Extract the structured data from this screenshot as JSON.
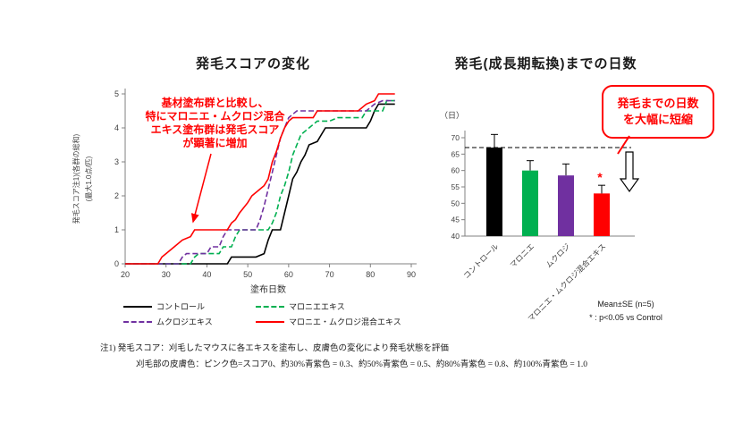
{
  "chart_data": [
    {
      "type": "line",
      "title": "発毛スコアの変化",
      "xlabel": "塗布日数",
      "ylabel": "発毛スコア注1)(各群の総和)",
      "ylabel2": "(最大1.0点/匹)",
      "xlim": [
        20,
        90
      ],
      "ylim": [
        0,
        5
      ],
      "xticks": [
        20,
        30,
        40,
        50,
        60,
        70,
        80,
        90
      ],
      "yticks": [
        0,
        1,
        2,
        3,
        4,
        5
      ],
      "grid": false,
      "legend_position": "bottom",
      "series": [
        {
          "name": "コントロール",
          "color": "#000000",
          "dash": "solid",
          "points": [
            [
              20,
              0
            ],
            [
              45,
              0
            ],
            [
              46,
              0.2
            ],
            [
              52,
              0.2
            ],
            [
              54,
              0.3
            ],
            [
              55,
              0.7
            ],
            [
              56,
              1
            ],
            [
              58,
              1
            ],
            [
              59,
              1.5
            ],
            [
              60,
              2
            ],
            [
              61,
              2.5
            ],
            [
              62,
              2.7
            ],
            [
              63,
              3
            ],
            [
              64,
              3.2
            ],
            [
              65,
              3.5
            ],
            [
              67,
              3.6
            ],
            [
              68,
              3.8
            ],
            [
              69,
              4
            ],
            [
              79,
              4
            ],
            [
              80,
              4.2
            ],
            [
              81,
              4.5
            ],
            [
              82,
              4.7
            ],
            [
              86,
              4.7
            ]
          ]
        },
        {
          "name": "マロニエエキス",
          "color": "#00B050",
          "dash": "dashed",
          "points": [
            [
              20,
              0
            ],
            [
              36,
              0
            ],
            [
              37,
              0.2
            ],
            [
              38,
              0.3
            ],
            [
              43,
              0.3
            ],
            [
              44,
              0.5
            ],
            [
              46,
              0.5
            ],
            [
              47,
              0.8
            ],
            [
              48,
              1
            ],
            [
              55,
              1
            ],
            [
              56,
              1.2
            ],
            [
              57,
              1.5
            ],
            [
              58,
              2
            ],
            [
              59,
              2.3
            ],
            [
              60,
              2.7
            ],
            [
              61,
              3.2
            ],
            [
              62,
              3.5
            ],
            [
              63,
              3.8
            ],
            [
              65,
              4
            ],
            [
              67,
              4.2
            ],
            [
              70,
              4.2
            ],
            [
              72,
              4.3
            ],
            [
              78,
              4.3
            ],
            [
              79,
              4.5
            ],
            [
              83,
              4.5
            ],
            [
              84,
              4.8
            ],
            [
              86,
              4.8
            ]
          ]
        },
        {
          "name": "ムクロジエキス",
          "color": "#7030A0",
          "dash": "dashed",
          "points": [
            [
              20,
              0
            ],
            [
              33,
              0
            ],
            [
              34,
              0.2
            ],
            [
              35,
              0.3
            ],
            [
              40,
              0.3
            ],
            [
              41,
              0.5
            ],
            [
              43,
              0.5
            ],
            [
              44,
              0.8
            ],
            [
              45,
              1
            ],
            [
              52,
              1
            ],
            [
              53,
              1.3
            ],
            [
              54,
              1.7
            ],
            [
              55,
              2.2
            ],
            [
              56,
              2.7
            ],
            [
              57,
              3.2
            ],
            [
              58,
              3.7
            ],
            [
              59,
              4
            ],
            [
              60,
              4.3
            ],
            [
              62,
              4.5
            ],
            [
              79,
              4.5
            ],
            [
              81,
              4.7
            ],
            [
              83,
              4.8
            ],
            [
              86,
              4.8
            ]
          ]
        },
        {
          "name": "マロニエ・ムクロジ混合エキス",
          "color": "#FF0000",
          "dash": "solid",
          "points": [
            [
              20,
              0
            ],
            [
              28,
              0
            ],
            [
              29,
              0.2
            ],
            [
              30,
              0.3
            ],
            [
              32,
              0.5
            ],
            [
              34,
              0.7
            ],
            [
              36,
              0.8
            ],
            [
              37,
              1
            ],
            [
              45,
              1
            ],
            [
              46,
              1.2
            ],
            [
              47,
              1.3
            ],
            [
              48,
              1.5
            ],
            [
              50,
              1.8
            ],
            [
              51,
              2
            ],
            [
              53,
              2.2
            ],
            [
              54,
              2.3
            ],
            [
              55,
              2.5
            ],
            [
              56,
              3
            ],
            [
              57,
              3.3
            ],
            [
              58,
              3.7
            ],
            [
              59,
              4
            ],
            [
              60,
              4.2
            ],
            [
              61,
              4.3
            ],
            [
              66,
              4.3
            ],
            [
              67,
              4.5
            ],
            [
              77,
              4.5
            ],
            [
              79,
              4.7
            ],
            [
              81,
              4.8
            ],
            [
              82,
              5
            ],
            [
              86,
              5
            ]
          ]
        }
      ]
    },
    {
      "type": "bar",
      "title": "発毛(成長期転換)までの日数",
      "unit": "（日）",
      "categories": [
        "コントロール",
        "マロニエ",
        "ムクロジ",
        "マロニエ・ムクロジ混合エキス"
      ],
      "values": [
        67,
        60,
        58.5,
        53
      ],
      "errors": [
        4,
        3,
        3.5,
        2.5
      ],
      "colors": [
        "#000000",
        "#00B050",
        "#7030A0",
        "#FF0000"
      ],
      "ylim": [
        40,
        70
      ],
      "yticks": [
        40,
        45,
        50,
        55,
        60,
        65,
        70
      ],
      "reference_line": {
        "value": 67,
        "style": "dashed",
        "color": "#000000"
      },
      "significance_marker": {
        "category_index": 3,
        "label": "*",
        "color": "#FF0000"
      }
    }
  ],
  "annotations": {
    "line_chart_note": "基材塗布群と比較し、\n特にマロニエ・ムクロジ混合\nエキス塗布群は発毛スコア\nが顕著に増加",
    "bar_chart_callout": "発毛までの日数\nを大幅に短縮",
    "stats_note1": "Mean±SE (n=5)",
    "stats_note2": "* : p<0.05 vs Control"
  },
  "footnotes": {
    "line1": "注1) 発毛スコア：刈毛したマウスに各エキスを塗布し、皮膚色の変化により発毛状態を評価",
    "line2": "刈毛部の皮膚色：ピンク色=スコア0、約30%青紫色 = 0.3、約50%青紫色 = 0.5、約80%青紫色 = 0.8、約100%青紫色 = 1.0"
  }
}
